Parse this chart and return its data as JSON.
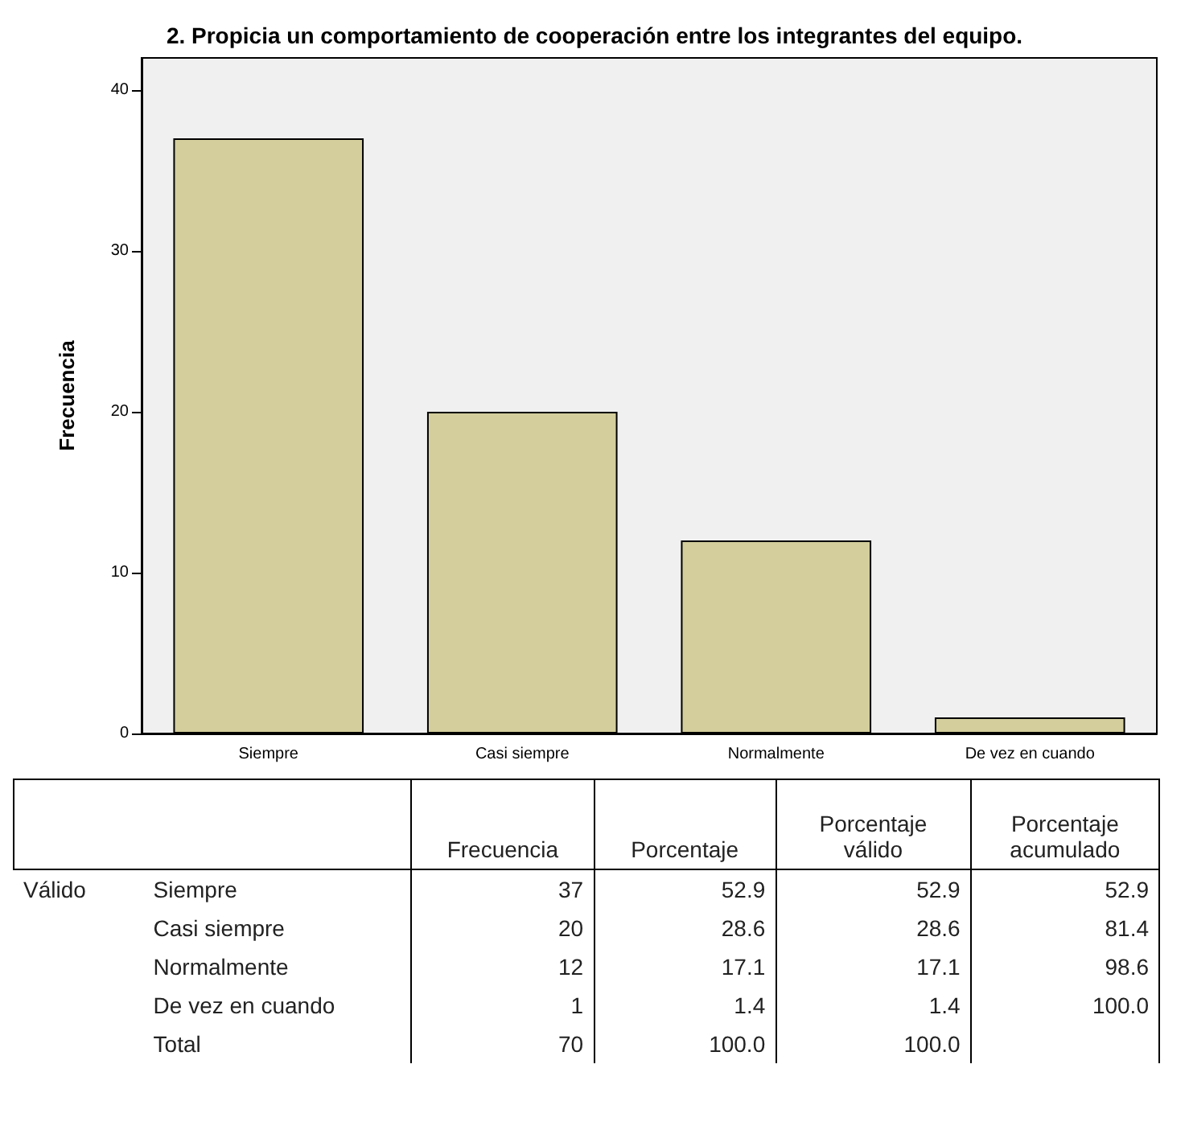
{
  "chart_data": {
    "type": "bar",
    "title": "2. Propicia un comportamiento de cooperación entre los integrantes del equipo.",
    "ylabel": "Frecuencia",
    "categories": [
      "Siempre",
      "Casi siempre",
      "Normalmente",
      "De vez en cuando"
    ],
    "values": [
      37,
      20,
      12,
      1
    ],
    "color": "#d3ce9c",
    "ylim": [
      0,
      42
    ],
    "yticks": [
      0,
      10,
      20,
      30,
      40
    ],
    "grid": false,
    "annotations": [
      "Frecuencia",
      "Porcentaje",
      "Porcentaje válido",
      "Porcentaje acumulado",
      "Válido",
      "37",
      "52.9",
      "52.9",
      "52.9",
      "20",
      "28.6",
      "28.6",
      "81.4",
      "12",
      "17.1",
      "17.1",
      "98.6",
      "1",
      "1.4",
      "1.4",
      "100.0",
      "Total",
      "70",
      "100.0",
      "100.0"
    ]
  }
}
